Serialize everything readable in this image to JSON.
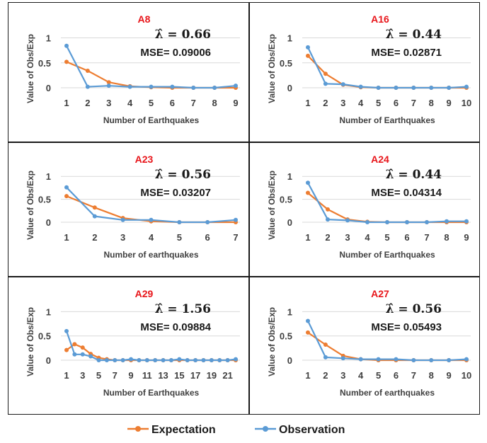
{
  "colors": {
    "expectation": "#ED7D31",
    "observation": "#5B9BD5",
    "title": "#E8161B",
    "grid": "#d9d9d9",
    "text": "#404040"
  },
  "legend": {
    "expectation": "Expectation",
    "observation": "Observation",
    "placement": "bottom"
  },
  "chart_data": [
    {
      "type": "line",
      "title": "A8",
      "lambda": "λ̂ = 0.66",
      "mse": "MSE= 0.09006",
      "xlabel": "Number of Earthquakes",
      "ylabel": "Value of Obs/Exp",
      "ylim": [
        0,
        1.05
      ],
      "yticks": [
        0,
        0.5,
        1
      ],
      "grid": true,
      "x": [
        1,
        2,
        3,
        4,
        5,
        6,
        7,
        8,
        9
      ],
      "series": [
        {
          "name": "Expectation",
          "values": [
            0.52,
            0.34,
            0.11,
            0.03,
            0.01,
            0.0,
            0.0,
            0.0,
            0.0
          ]
        },
        {
          "name": "Observation",
          "values": [
            0.84,
            0.02,
            0.04,
            0.02,
            0.02,
            0.02,
            0.0,
            0.0,
            0.04
          ]
        }
      ]
    },
    {
      "type": "line",
      "title": "A16",
      "lambda": "λ̂ = 0.44",
      "mse": "MSE= 0.02871",
      "xlabel": "Number of Earthquakes",
      "ylabel": "Value of Obs/Exp",
      "ylim": [
        0,
        1.05
      ],
      "yticks": [
        0,
        0.5,
        1
      ],
      "grid": true,
      "x": [
        1,
        2,
        3,
        4,
        5,
        6,
        7,
        8,
        9,
        10
      ],
      "series": [
        {
          "name": "Expectation",
          "values": [
            0.64,
            0.28,
            0.06,
            0.01,
            0.0,
            0.0,
            0.0,
            0.0,
            0.0,
            0.0
          ]
        },
        {
          "name": "Observation",
          "values": [
            0.81,
            0.08,
            0.07,
            0.02,
            0.0,
            0.0,
            0.0,
            0.0,
            0.0,
            0.02
          ]
        }
      ]
    },
    {
      "type": "line",
      "title": "A23",
      "lambda": "λ̂ = 0.56",
      "mse": "MSE= 0.03207",
      "xlabel": "Number of earthquakes",
      "ylabel": "Value of Obs/Exp",
      "ylim": [
        0,
        1.05
      ],
      "yticks": [
        0,
        0.5,
        1
      ],
      "grid": true,
      "x": [
        1,
        2,
        3,
        4,
        5,
        6,
        7
      ],
      "series": [
        {
          "name": "Expectation",
          "values": [
            0.57,
            0.32,
            0.09,
            0.02,
            0.0,
            0.0,
            0.0
          ]
        },
        {
          "name": "Observation",
          "values": [
            0.76,
            0.13,
            0.05,
            0.05,
            0.0,
            0.0,
            0.05
          ]
        }
      ]
    },
    {
      "type": "line",
      "title": "A24",
      "lambda": "λ̂ = 0.44",
      "mse": "MSE= 0.04314",
      "xlabel": "Number of Earthquakes",
      "ylabel": "Value of Obs/Exp",
      "ylim": [
        0,
        1.05
      ],
      "yticks": [
        0,
        0.5,
        1
      ],
      "grid": true,
      "x": [
        1,
        2,
        3,
        4,
        5,
        6,
        7,
        8,
        9
      ],
      "series": [
        {
          "name": "Expectation",
          "values": [
            0.64,
            0.28,
            0.06,
            0.01,
            0.0,
            0.0,
            0.0,
            0.0,
            0.0
          ]
        },
        {
          "name": "Observation",
          "values": [
            0.86,
            0.06,
            0.04,
            0.0,
            0.0,
            0.0,
            0.0,
            0.02,
            0.02
          ]
        }
      ]
    },
    {
      "type": "line",
      "title": "A29",
      "lambda": "λ̂ = 1.56",
      "mse": "MSE= 0.09884",
      "xlabel": "Number of Earthquakes",
      "ylabel": "Value of Obs/Exp",
      "ylim": [
        0,
        1.05
      ],
      "yticks": [
        0,
        0.5,
        1
      ],
      "grid": true,
      "x": [
        1,
        2,
        3,
        4,
        5,
        6,
        7,
        8,
        9,
        10,
        11,
        12,
        13,
        14,
        15,
        16,
        17,
        18,
        19,
        20,
        21,
        22
      ],
      "xticks": [
        1,
        3,
        5,
        7,
        9,
        11,
        13,
        15,
        17,
        19,
        21
      ],
      "series": [
        {
          "name": "Expectation",
          "values": [
            0.21,
            0.33,
            0.26,
            0.13,
            0.05,
            0.02,
            0.0,
            0.0,
            0.0,
            0.0,
            0.0,
            0.0,
            0.0,
            0.0,
            0.0,
            0.0,
            0.0,
            0.0,
            0.0,
            0.0,
            0.0,
            0.0
          ]
        },
        {
          "name": "Observation",
          "values": [
            0.6,
            0.12,
            0.12,
            0.08,
            0.0,
            0.0,
            0.0,
            0.0,
            0.02,
            0.0,
            0.0,
            0.0,
            0.0,
            0.0,
            0.02,
            0.0,
            0.0,
            0.0,
            0.0,
            0.0,
            0.0,
            0.02
          ]
        }
      ]
    },
    {
      "type": "line",
      "title": "A27",
      "lambda": "λ̂ = 0.56",
      "mse": "MSE= 0.05493",
      "xlabel": "Number of earthquakes",
      "ylabel": "Value of Obs/Exp",
      "ylim": [
        0,
        1.05
      ],
      "yticks": [
        0,
        0.5,
        1
      ],
      "grid": true,
      "x": [
        1,
        2,
        3,
        4,
        5,
        6,
        7,
        8,
        9,
        10
      ],
      "series": [
        {
          "name": "Expectation",
          "values": [
            0.57,
            0.32,
            0.09,
            0.02,
            0.0,
            0.0,
            0.0,
            0.0,
            0.0,
            0.0
          ]
        },
        {
          "name": "Observation",
          "values": [
            0.81,
            0.06,
            0.04,
            0.02,
            0.02,
            0.02,
            0.0,
            0.0,
            0.0,
            0.02
          ]
        }
      ]
    }
  ]
}
